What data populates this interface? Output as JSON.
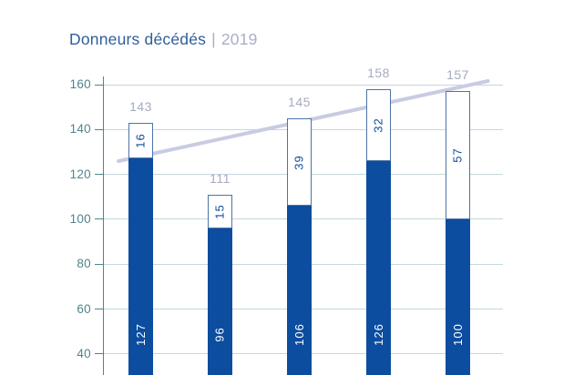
{
  "title": {
    "main": "Donneurs décédés",
    "separator": "|",
    "year": "2019"
  },
  "chart_data": {
    "type": "bar",
    "stacked": true,
    "orientation": "vertical",
    "title": "Donneurs décédés | 2019",
    "series": [
      {
        "name": "dark-blue-segment",
        "values": [
          127,
          96,
          106,
          126,
          100
        ]
      },
      {
        "name": "white-segment",
        "values": [
          16,
          15,
          39,
          32,
          57
        ]
      }
    ],
    "totals": [
      143,
      111,
      145,
      158,
      157
    ],
    "y_axis": {
      "ticks": [
        160,
        140,
        120,
        100,
        80,
        60,
        40
      ],
      "visible_range_estimate": [
        31,
        165
      ],
      "grid": true
    },
    "trend_line": {
      "shape": "straight",
      "estimated_start_value": 126,
      "estimated_end_value": 162
    },
    "notes": "bars truncated by bottom edge of image; no x-axis category labels visible; no legend visible"
  },
  "colors": {
    "bar_fill": "#0c4d9f",
    "bar_outline": "#4d73a8",
    "value_on_dark": "#ffffff",
    "value_on_light": "#0f4c97",
    "total_label": "#a6abc0",
    "trend_line": "#c9cbe2",
    "gridline": "#c3d8db",
    "axis": "#4f858b",
    "title_main": "#2e5e99",
    "title_year": "#a5aecb",
    "background": "#ffffff"
  }
}
